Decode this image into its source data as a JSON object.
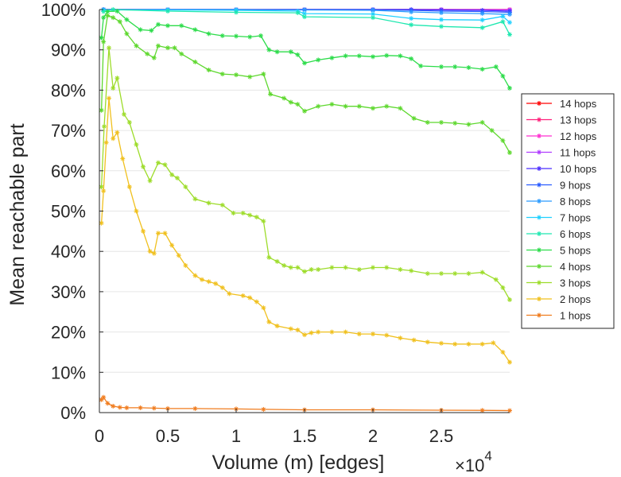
{
  "chart_data": {
    "type": "line",
    "title": "",
    "xlabel": "Volume (m) [edges]",
    "ylabel": "Mean reachable part",
    "x_multiplier": "×10",
    "x_multiplier_exp": "4",
    "xlim": [
      0,
      30000
    ],
    "ylim": [
      0,
      100
    ],
    "xticks": [
      0,
      5000,
      10000,
      15000,
      20000,
      25000
    ],
    "xtick_labels": [
      "0",
      "0.5",
      "1",
      "1.5",
      "2",
      "2.5"
    ],
    "yticks": [
      0,
      10,
      20,
      30,
      40,
      50,
      60,
      70,
      80,
      90,
      100
    ],
    "ytick_labels": [
      "0%",
      "10%",
      "20%",
      "30%",
      "40%",
      "50%",
      "60%",
      "70%",
      "80%",
      "90%",
      "100%"
    ],
    "grid": "horizontal",
    "legend_position": "right",
    "series": [
      {
        "name": "14 hops",
        "color": "#ff0000",
        "points": [
          [
            300,
            100
          ],
          [
            5000,
            100
          ],
          [
            10000,
            100
          ],
          [
            15000,
            100
          ],
          [
            20000,
            100
          ],
          [
            25000,
            100
          ],
          [
            30000,
            100
          ]
        ]
      },
      {
        "name": "13 hops",
        "color": "#ff1f7a",
        "points": [
          [
            300,
            100
          ],
          [
            5000,
            100
          ],
          [
            10000,
            100
          ],
          [
            15000,
            100
          ],
          [
            20000,
            100
          ],
          [
            25000,
            100
          ],
          [
            30000,
            100
          ]
        ]
      },
      {
        "name": "12 hops",
        "color": "#ff2fd0",
        "points": [
          [
            300,
            100
          ],
          [
            5000,
            100
          ],
          [
            10000,
            100
          ],
          [
            15000,
            100
          ],
          [
            20000,
            100
          ],
          [
            25000,
            100
          ],
          [
            30000,
            100
          ]
        ]
      },
      {
        "name": "11 hops",
        "color": "#b03cff",
        "points": [
          [
            300,
            100
          ],
          [
            5000,
            100
          ],
          [
            10000,
            100
          ],
          [
            15000,
            100
          ],
          [
            20000,
            100
          ],
          [
            25000,
            100
          ],
          [
            30000,
            99.9
          ]
        ]
      },
      {
        "name": "10 hops",
        "color": "#4b2cff",
        "points": [
          [
            300,
            100
          ],
          [
            5000,
            100
          ],
          [
            10000,
            100
          ],
          [
            15000,
            100
          ],
          [
            20000,
            100
          ],
          [
            22800,
            100
          ],
          [
            25000,
            99.9
          ],
          [
            28000,
            99.8
          ],
          [
            30000,
            99.6
          ]
        ]
      },
      {
        "name": "9 hops",
        "color": "#2a5cff",
        "points": [
          [
            300,
            100
          ],
          [
            5000,
            100
          ],
          [
            10000,
            100
          ],
          [
            15000,
            100
          ],
          [
            20000,
            100
          ],
          [
            22800,
            99.8
          ],
          [
            25000,
            99.6
          ],
          [
            28000,
            99.5
          ],
          [
            30000,
            99.3
          ]
        ]
      },
      {
        "name": "8 hops",
        "color": "#2a9bff",
        "points": [
          [
            300,
            100
          ],
          [
            5000,
            100
          ],
          [
            10000,
            100
          ],
          [
            15000,
            99.9
          ],
          [
            20000,
            99.8
          ],
          [
            22800,
            99.4
          ],
          [
            25000,
            99.2
          ],
          [
            28000,
            99.0
          ],
          [
            30000,
            98.8
          ]
        ]
      },
      {
        "name": "7 hops",
        "color": "#1fd0ff",
        "points": [
          [
            300,
            99.9
          ],
          [
            5000,
            99.9
          ],
          [
            10000,
            99.8
          ],
          [
            14500,
            99.6
          ],
          [
            15000,
            99.0
          ],
          [
            20000,
            98.9
          ],
          [
            22800,
            97.8
          ],
          [
            25000,
            97.5
          ],
          [
            28000,
            97.4
          ],
          [
            29500,
            98.3
          ],
          [
            30000,
            96.8
          ]
        ]
      },
      {
        "name": "6 hops",
        "color": "#1fe8b0",
        "points": [
          [
            300,
            99.5
          ],
          [
            1000,
            100
          ],
          [
            5000,
            99.6
          ],
          [
            10000,
            99.3
          ],
          [
            14500,
            99.2
          ],
          [
            15000,
            98.2
          ],
          [
            20000,
            98.0
          ],
          [
            22800,
            96.2
          ],
          [
            25000,
            95.8
          ],
          [
            28000,
            95.5
          ],
          [
            29500,
            97.0
          ],
          [
            30000,
            93.8
          ]
        ]
      },
      {
        "name": "5 hops",
        "color": "#2cdc4a",
        "points": [
          [
            150,
            93
          ],
          [
            300,
            98
          ],
          [
            600,
            99.5
          ],
          [
            1300,
            99.6
          ],
          [
            2000,
            97.5
          ],
          [
            3000,
            95
          ],
          [
            3800,
            94.8
          ],
          [
            4300,
            96.3
          ],
          [
            5000,
            96
          ],
          [
            6000,
            96
          ],
          [
            7000,
            95
          ],
          [
            8000,
            94
          ],
          [
            9000,
            93.5
          ],
          [
            10000,
            93.4
          ],
          [
            11000,
            93.2
          ],
          [
            11800,
            93.5
          ],
          [
            12400,
            90
          ],
          [
            13000,
            89.5
          ],
          [
            14000,
            89.5
          ],
          [
            14500,
            88.8
          ],
          [
            15000,
            86.7
          ],
          [
            16000,
            87.5
          ],
          [
            17000,
            88
          ],
          [
            18000,
            88.5
          ],
          [
            19000,
            88.5
          ],
          [
            20000,
            88.3
          ],
          [
            21000,
            88.6
          ],
          [
            22000,
            88.5
          ],
          [
            22800,
            87.8
          ],
          [
            23500,
            86
          ],
          [
            25000,
            85.8
          ],
          [
            26000,
            85.8
          ],
          [
            27000,
            85.6
          ],
          [
            28000,
            85.2
          ],
          [
            29000,
            85.8
          ],
          [
            29500,
            83.5
          ],
          [
            30000,
            80.5
          ]
        ]
      },
      {
        "name": "4 hops",
        "color": "#5ed82e",
        "points": [
          [
            150,
            75
          ],
          [
            300,
            92
          ],
          [
            600,
            98.5
          ],
          [
            1000,
            98
          ],
          [
            1500,
            97
          ],
          [
            2000,
            94
          ],
          [
            2700,
            91
          ],
          [
            3500,
            89
          ],
          [
            4000,
            88
          ],
          [
            4300,
            91
          ],
          [
            5000,
            90.5
          ],
          [
            5500,
            90.5
          ],
          [
            6000,
            89
          ],
          [
            7000,
            87
          ],
          [
            8000,
            85
          ],
          [
            9000,
            84
          ],
          [
            10000,
            83.8
          ],
          [
            11000,
            83.3
          ],
          [
            12000,
            84
          ],
          [
            12500,
            79
          ],
          [
            13500,
            78
          ],
          [
            14000,
            77
          ],
          [
            14500,
            76.5
          ],
          [
            15000,
            74.8
          ],
          [
            16000,
            76
          ],
          [
            17000,
            76.5
          ],
          [
            18000,
            76
          ],
          [
            19000,
            76
          ],
          [
            20000,
            75.5
          ],
          [
            21000,
            76
          ],
          [
            22000,
            75.5
          ],
          [
            23000,
            73
          ],
          [
            24000,
            72
          ],
          [
            25000,
            72
          ],
          [
            26000,
            71.8
          ],
          [
            27000,
            71.5
          ],
          [
            28000,
            72
          ],
          [
            28700,
            70
          ],
          [
            29500,
            67.5
          ],
          [
            30000,
            64.5
          ]
        ]
      },
      {
        "name": "3 hops",
        "color": "#9ddc2a",
        "points": [
          [
            150,
            56
          ],
          [
            350,
            71
          ],
          [
            700,
            90.5
          ],
          [
            1000,
            80.5
          ],
          [
            1300,
            83
          ],
          [
            1800,
            74
          ],
          [
            2200,
            72
          ],
          [
            2700,
            66.5
          ],
          [
            3200,
            61
          ],
          [
            3700,
            57.5
          ],
          [
            4300,
            62
          ],
          [
            4800,
            61.5
          ],
          [
            5300,
            59
          ],
          [
            5700,
            58.2
          ],
          [
            6300,
            56
          ],
          [
            7000,
            53
          ],
          [
            8000,
            52
          ],
          [
            9000,
            51.5
          ],
          [
            9800,
            49.5
          ],
          [
            10500,
            49.5
          ],
          [
            11000,
            49
          ],
          [
            11500,
            48.5
          ],
          [
            12000,
            47.5
          ],
          [
            12400,
            38.5
          ],
          [
            13000,
            37.5
          ],
          [
            13500,
            36.5
          ],
          [
            14000,
            36
          ],
          [
            14500,
            36
          ],
          [
            15000,
            35
          ],
          [
            15500,
            35.5
          ],
          [
            16000,
            35.5
          ],
          [
            17000,
            36
          ],
          [
            18000,
            36
          ],
          [
            19000,
            35.5
          ],
          [
            20000,
            36
          ],
          [
            21000,
            36
          ],
          [
            22000,
            35.5
          ],
          [
            22800,
            35.2
          ],
          [
            24000,
            34.5
          ],
          [
            25000,
            34.5
          ],
          [
            26000,
            34.5
          ],
          [
            27000,
            34.5
          ],
          [
            28000,
            34.8
          ],
          [
            29000,
            33
          ],
          [
            29500,
            31
          ],
          [
            30000,
            28
          ]
        ]
      },
      {
        "name": "2 hops",
        "color": "#f0c01e",
        "points": [
          [
            150,
            47
          ],
          [
            300,
            55
          ],
          [
            500,
            67
          ],
          [
            700,
            78
          ],
          [
            1000,
            68
          ],
          [
            1300,
            69.5
          ],
          [
            1700,
            63
          ],
          [
            2200,
            56
          ],
          [
            2700,
            50
          ],
          [
            3200,
            45
          ],
          [
            3700,
            40
          ],
          [
            4000,
            39.5
          ],
          [
            4300,
            44.5
          ],
          [
            4800,
            44.5
          ],
          [
            5300,
            41.5
          ],
          [
            5800,
            39
          ],
          [
            6300,
            36.5
          ],
          [
            7000,
            34
          ],
          [
            7500,
            33
          ],
          [
            8000,
            32.5
          ],
          [
            8500,
            32
          ],
          [
            9000,
            31
          ],
          [
            9500,
            29.5
          ],
          [
            10500,
            29
          ],
          [
            11000,
            28.5
          ],
          [
            11500,
            27.5
          ],
          [
            12000,
            26
          ],
          [
            12400,
            22.5
          ],
          [
            13000,
            21.5
          ],
          [
            14000,
            20.8
          ],
          [
            14500,
            20.5
          ],
          [
            15000,
            19.3
          ],
          [
            15500,
            19.8
          ],
          [
            16000,
            20
          ],
          [
            17000,
            20
          ],
          [
            18000,
            20
          ],
          [
            19000,
            19.5
          ],
          [
            20000,
            19.5
          ],
          [
            21000,
            19.2
          ],
          [
            22000,
            18.5
          ],
          [
            23000,
            18
          ],
          [
            24000,
            17.5
          ],
          [
            25000,
            17.2
          ],
          [
            26000,
            17
          ],
          [
            27000,
            17
          ],
          [
            28000,
            17
          ],
          [
            28800,
            17.3
          ],
          [
            29500,
            15
          ],
          [
            30000,
            12.5
          ]
        ]
      },
      {
        "name": "1 hops",
        "color": "#f07c1e",
        "points": [
          [
            150,
            3.2
          ],
          [
            300,
            3.8
          ],
          [
            600,
            2.3
          ],
          [
            1000,
            1.6
          ],
          [
            1500,
            1.3
          ],
          [
            2000,
            1.2
          ],
          [
            3000,
            1.2
          ],
          [
            4000,
            1.1
          ],
          [
            5000,
            1.0
          ],
          [
            7000,
            1.0
          ],
          [
            10000,
            0.9
          ],
          [
            12000,
            0.8
          ],
          [
            15000,
            0.7
          ],
          [
            20000,
            0.7
          ],
          [
            25000,
            0.6
          ],
          [
            28000,
            0.55
          ],
          [
            30000,
            0.5
          ]
        ]
      }
    ]
  }
}
